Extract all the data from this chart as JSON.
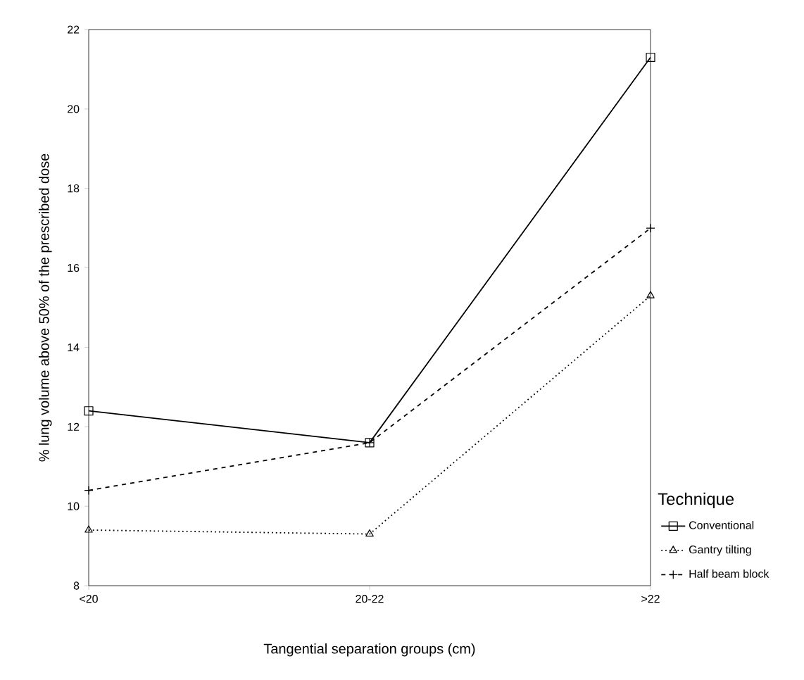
{
  "chart_data": {
    "type": "line",
    "xlabel": "Tangential separation groups (cm)",
    "ylabel": "% lung volume above 50% of the prescribed dose",
    "legend_title": "Technique",
    "categories": [
      "<20",
      "20-22",
      ">22"
    ],
    "series": [
      {
        "name": "Conventional",
        "color": "#000000",
        "values": [
          12.4,
          11.6,
          21.3
        ],
        "marker": "square",
        "line_style": "solid"
      },
      {
        "name": "Gantry tilting",
        "color": "#000000",
        "values": [
          9.4,
          9.3,
          15.3
        ],
        "marker": "triangle",
        "line_style": "dotted"
      },
      {
        "name": "Half beam block",
        "color": "#000000",
        "values": [
          10.4,
          11.6,
          17.0
        ],
        "marker": "cross",
        "line_style": "dashed"
      }
    ],
    "ylim": [
      8,
      22
    ],
    "yticks": [
      8,
      10,
      12,
      14,
      16,
      18,
      20,
      22
    ],
    "grid": false,
    "legend": "right"
  }
}
